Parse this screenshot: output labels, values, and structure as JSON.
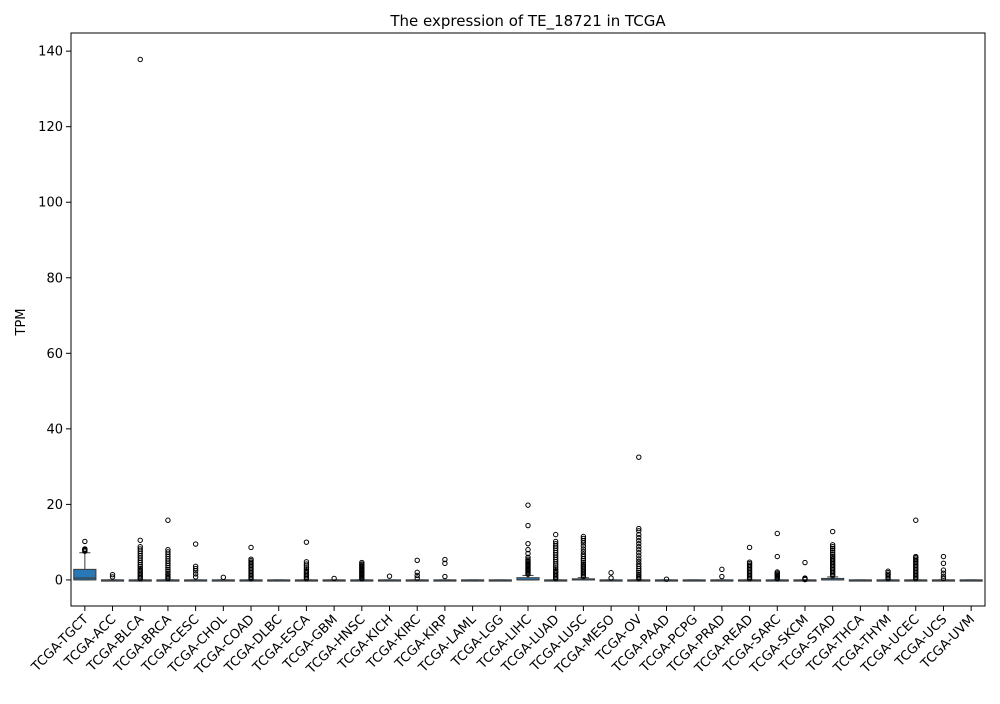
{
  "chart_data": {
    "type": "box",
    "title": "The expression of TE_18721 in TCGA",
    "xlabel": "",
    "ylabel": "TPM",
    "ylim": [
      -6.9,
      144.8
    ],
    "yticks": [
      0,
      20,
      40,
      60,
      80,
      100,
      120,
      140
    ],
    "grid": false,
    "legend": "none",
    "box_color": "#2878b5",
    "categories": [
      "TCGA-TGCT",
      "TCGA-ACC",
      "TCGA-BLCA",
      "TCGA-BRCA",
      "TCGA-CESC",
      "TCGA-CHOL",
      "TCGA-COAD",
      "TCGA-DLBC",
      "TCGA-ESCA",
      "TCGA-GBM",
      "TCGA-HNSC",
      "TCGA-KICH",
      "TCGA-KIRC",
      "TCGA-KIRP",
      "TCGA-LAML",
      "TCGA-LGG",
      "TCGA-LIHC",
      "TCGA-LUAD",
      "TCGA-LUSC",
      "TCGA-MESO",
      "TCGA-OV",
      "TCGA-PAAD",
      "TCGA-PCPG",
      "TCGA-PRAD",
      "TCGA-READ",
      "TCGA-SARC",
      "TCGA-SKCM",
      "TCGA-STAD",
      "TCGA-THCA",
      "TCGA-THYM",
      "TCGA-UCEC",
      "TCGA-UCS",
      "TCGA-UVM"
    ],
    "boxes": [
      {
        "q1": 0.0,
        "median": 0.5,
        "q3": 2.8,
        "whislo": 0.0,
        "whishi": 7.2,
        "outliers": [
          7.6,
          7.8,
          8.0,
          8.1,
          8.2,
          10.2
        ]
      },
      {
        "q1": 0.0,
        "median": 0.0,
        "q3": 0.0,
        "whislo": 0.0,
        "whishi": 0.0,
        "outliers": [
          0.8,
          1.4
        ]
      },
      {
        "q1": 0.0,
        "median": 0.0,
        "q3": 0.0,
        "whislo": 0.0,
        "whishi": 0.0,
        "outliers": [
          0.3,
          0.6,
          1.0,
          1.4,
          1.8,
          2.2,
          2.6,
          3.0,
          3.5,
          4.0,
          4.6,
          5.2,
          5.8,
          6.4,
          7.0,
          7.6,
          8.2,
          8.8,
          10.5,
          137.8
        ]
      },
      {
        "q1": 0.0,
        "median": 0.0,
        "q3": 0.0,
        "whislo": 0.0,
        "whishi": 0.0,
        "outliers": [
          0.3,
          0.6,
          1.0,
          1.4,
          1.8,
          2.3,
          2.8,
          3.3,
          3.8,
          4.4,
          5.0,
          5.6,
          6.2,
          6.8,
          7.4,
          8.0,
          15.8
        ]
      },
      {
        "q1": 0.0,
        "median": 0.0,
        "q3": 0.0,
        "whislo": 0.0,
        "whishi": 0.0,
        "outliers": [
          0.8,
          1.6,
          2.4,
          3.0,
          3.6,
          9.5
        ]
      },
      {
        "q1": 0.0,
        "median": 0.0,
        "q3": 0.0,
        "whislo": 0.0,
        "whishi": 0.0,
        "outliers": [
          0.7
        ]
      },
      {
        "q1": 0.0,
        "median": 0.0,
        "q3": 0.0,
        "whislo": 0.0,
        "whishi": 0.0,
        "outliers": [
          0.3,
          0.7,
          1.1,
          1.5,
          1.9,
          2.3,
          2.7,
          3.1,
          3.5,
          3.9,
          4.3,
          4.7,
          5.1,
          5.5,
          8.6
        ]
      },
      {
        "q1": 0.0,
        "median": 0.0,
        "q3": 0.0,
        "whislo": 0.0,
        "whishi": 0.0,
        "outliers": []
      },
      {
        "q1": 0.0,
        "median": 0.0,
        "q3": 0.0,
        "whislo": 0.0,
        "whishi": 0.0,
        "outliers": [
          0.3,
          0.7,
          1.1,
          1.5,
          1.9,
          2.3,
          2.7,
          3.2,
          3.7,
          4.2,
          4.8,
          10.0
        ]
      },
      {
        "q1": 0.0,
        "median": 0.0,
        "q3": 0.0,
        "whislo": 0.0,
        "whishi": 0.0,
        "outliers": [
          0.4
        ]
      },
      {
        "q1": 0.0,
        "median": 0.0,
        "q3": 0.0,
        "whislo": 0.0,
        "whishi": 0.0,
        "outliers": [
          0.3,
          0.6,
          0.9,
          1.2,
          1.5,
          1.8,
          2.1,
          2.4,
          2.7,
          3.0,
          3.3,
          3.6,
          3.9,
          4.2,
          4.6
        ]
      },
      {
        "q1": 0.0,
        "median": 0.0,
        "q3": 0.0,
        "whislo": 0.0,
        "whishi": 0.0,
        "outliers": [
          1.0
        ]
      },
      {
        "q1": 0.0,
        "median": 0.0,
        "q3": 0.0,
        "whislo": 0.0,
        "whishi": 0.0,
        "outliers": [
          0.5,
          1.2,
          2.0,
          5.2
        ]
      },
      {
        "q1": 0.0,
        "median": 0.0,
        "q3": 0.0,
        "whislo": 0.0,
        "whishi": 0.0,
        "outliers": [
          0.9,
          4.4,
          5.4
        ]
      },
      {
        "q1": 0.0,
        "median": 0.0,
        "q3": 0.0,
        "whislo": 0.0,
        "whishi": 0.0,
        "outliers": []
      },
      {
        "q1": 0.0,
        "median": 0.0,
        "q3": 0.0,
        "whislo": 0.0,
        "whishi": 0.0,
        "outliers": []
      },
      {
        "q1": 0.0,
        "median": 0.0,
        "q3": 0.6,
        "whislo": 0.0,
        "whishi": 1.2,
        "outliers": [
          1.5,
          1.8,
          2.1,
          2.4,
          2.7,
          3.0,
          3.3,
          3.6,
          3.9,
          4.2,
          4.5,
          4.8,
          5.1,
          5.5,
          6.0,
          7.0,
          8.0,
          9.6,
          14.4,
          19.8
        ]
      },
      {
        "q1": 0.0,
        "median": 0.0,
        "q3": 0.0,
        "whislo": 0.0,
        "whishi": 0.0,
        "outliers": [
          0.3,
          0.7,
          1.1,
          1.5,
          1.9,
          2.3,
          2.7,
          3.2,
          3.7,
          4.2,
          4.8,
          5.4,
          6.0,
          6.6,
          7.2,
          7.8,
          8.4,
          9.0,
          9.6,
          10.2,
          12.0
        ]
      },
      {
        "q1": 0.0,
        "median": 0.0,
        "q3": 0.3,
        "whislo": 0.0,
        "whishi": 0.6,
        "outliers": [
          0.9,
          1.3,
          1.7,
          2.1,
          2.5,
          2.9,
          3.3,
          3.7,
          4.1,
          4.6,
          5.1,
          5.6,
          6.2,
          6.8,
          7.5,
          8.2,
          9.0,
          9.8,
          10.4,
          11.0,
          11.5
        ]
      },
      {
        "q1": 0.0,
        "median": 0.0,
        "q3": 0.0,
        "whislo": 0.0,
        "whishi": 0.0,
        "outliers": [
          0.5,
          1.9
        ]
      },
      {
        "q1": 0.0,
        "median": 0.0,
        "q3": 0.0,
        "whislo": 0.0,
        "whishi": 0.0,
        "outliers": [
          0.3,
          0.7,
          1.1,
          1.5,
          2.0,
          2.5,
          3.0,
          3.6,
          4.2,
          4.9,
          5.6,
          6.4,
          7.2,
          8.0,
          8.8,
          9.6,
          10.4,
          11.2,
          12.0,
          13.0,
          13.6,
          32.5
        ]
      },
      {
        "q1": 0.0,
        "median": 0.0,
        "q3": 0.0,
        "whislo": 0.0,
        "whishi": 0.0,
        "outliers": [
          0.2
        ]
      },
      {
        "q1": 0.0,
        "median": 0.0,
        "q3": 0.0,
        "whislo": 0.0,
        "whishi": 0.0,
        "outliers": []
      },
      {
        "q1": 0.0,
        "median": 0.0,
        "q3": 0.0,
        "whislo": 0.0,
        "whishi": 0.0,
        "outliers": [
          0.9,
          2.8
        ]
      },
      {
        "q1": 0.0,
        "median": 0.0,
        "q3": 0.0,
        "whislo": 0.0,
        "whishi": 0.0,
        "outliers": [
          0.3,
          0.7,
          1.1,
          1.5,
          1.9,
          2.3,
          2.7,
          3.1,
          3.5,
          3.9,
          4.3,
          4.7,
          8.6
        ]
      },
      {
        "q1": 0.0,
        "median": 0.0,
        "q3": 0.0,
        "whislo": 0.0,
        "whishi": 0.0,
        "outliers": [
          0.3,
          0.6,
          0.9,
          1.2,
          1.5,
          1.8,
          2.1,
          6.2,
          12.3
        ]
      },
      {
        "q1": 0.0,
        "median": 0.0,
        "q3": 0.0,
        "whislo": 0.0,
        "whishi": 0.0,
        "outliers": [
          0.1,
          0.3,
          0.5,
          4.6
        ]
      },
      {
        "q1": 0.0,
        "median": 0.0,
        "q3": 0.4,
        "whislo": 0.0,
        "whishi": 0.8,
        "outliers": [
          1.1,
          1.5,
          1.9,
          2.3,
          2.7,
          3.1,
          3.5,
          3.9,
          4.3,
          4.7,
          5.1,
          5.5,
          5.9,
          6.3,
          6.8,
          7.3,
          7.8,
          8.3,
          8.8,
          9.3,
          12.8
        ]
      },
      {
        "q1": 0.0,
        "median": 0.0,
        "q3": 0.0,
        "whislo": 0.0,
        "whishi": 0.0,
        "outliers": []
      },
      {
        "q1": 0.0,
        "median": 0.0,
        "q3": 0.0,
        "whislo": 0.0,
        "whishi": 0.0,
        "outliers": [
          0.3,
          0.7,
          1.1,
          1.5,
          1.9,
          2.3
        ]
      },
      {
        "q1": 0.0,
        "median": 0.0,
        "q3": 0.0,
        "whislo": 0.0,
        "whishi": 0.0,
        "outliers": [
          0.3,
          0.7,
          1.1,
          1.5,
          1.9,
          2.3,
          2.7,
          3.1,
          3.5,
          3.9,
          4.3,
          4.7,
          5.1,
          5.5,
          5.9,
          6.2,
          15.8
        ]
      },
      {
        "q1": 0.0,
        "median": 0.0,
        "q3": 0.0,
        "whislo": 0.0,
        "whishi": 0.0,
        "outliers": [
          0.4,
          1.0,
          1.8,
          2.6,
          4.4,
          6.2
        ]
      },
      {
        "q1": 0.0,
        "median": 0.0,
        "q3": 0.0,
        "whislo": 0.0,
        "whishi": 0.0,
        "outliers": []
      }
    ]
  }
}
